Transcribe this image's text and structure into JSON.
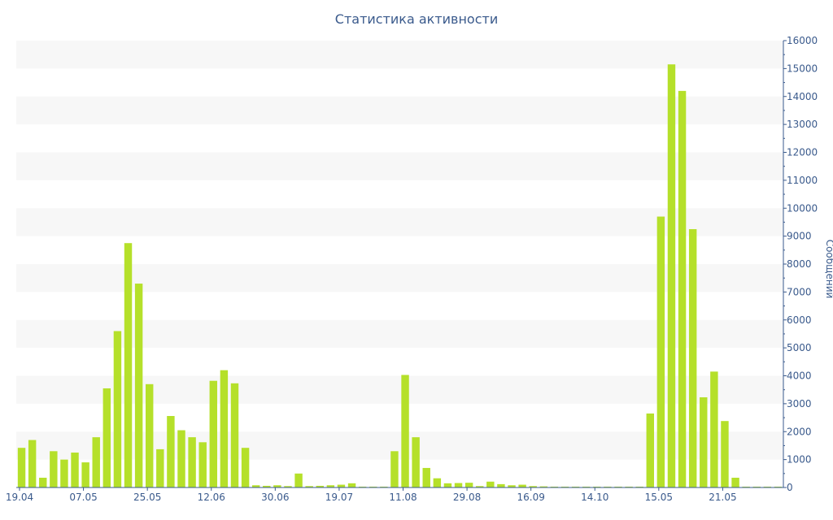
{
  "chart_data": {
    "type": "bar",
    "title": "Статистика активности",
    "xlabel": "",
    "ylabel": "Сообщений",
    "ylim": [
      0,
      16000
    ],
    "y_ticks": [
      0,
      1000,
      2000,
      3000,
      4000,
      5000,
      6000,
      7000,
      8000,
      9000,
      10000,
      11000,
      12000,
      13000,
      14000,
      15000,
      16000
    ],
    "x_tick_labels": [
      {
        "label": "19.04",
        "index": 0
      },
      {
        "label": "07.05",
        "index": 6
      },
      {
        "label": "25.05",
        "index": 12
      },
      {
        "label": "12.06",
        "index": 18
      },
      {
        "label": "30.06",
        "index": 24
      },
      {
        "label": "19.07",
        "index": 30
      },
      {
        "label": "11.08",
        "index": 36
      },
      {
        "label": "29.08",
        "index": 42
      },
      {
        "label": "16.09",
        "index": 48
      },
      {
        "label": "14.10",
        "index": 54
      },
      {
        "label": "15.05",
        "index": 60
      },
      {
        "label": "21.05",
        "index": 66
      }
    ],
    "values": [
      1420,
      1700,
      350,
      1300,
      1000,
      1250,
      900,
      1800,
      3550,
      5600,
      8750,
      7300,
      3700,
      1370,
      2560,
      2050,
      1800,
      1620,
      3820,
      4200,
      3730,
      1420,
      80,
      60,
      80,
      50,
      500,
      50,
      60,
      80,
      100,
      150,
      30,
      30,
      30,
      1300,
      4030,
      1800,
      700,
      330,
      150,
      160,
      170,
      50,
      210,
      120,
      80,
      100,
      50,
      40,
      30,
      30,
      30,
      30,
      30,
      30,
      30,
      30,
      30,
      2650,
      9700,
      15150,
      14200,
      9250,
      3230,
      4150,
      2380,
      350,
      30,
      30,
      30,
      30
    ],
    "bar_color": "#b5e02a",
    "grid": "alternating horizontal bands",
    "legend": "none"
  },
  "colors": {
    "axis_text": "#3a5a8c",
    "band": "#f7f7f7",
    "axis_line": "#3a5a8c"
  }
}
